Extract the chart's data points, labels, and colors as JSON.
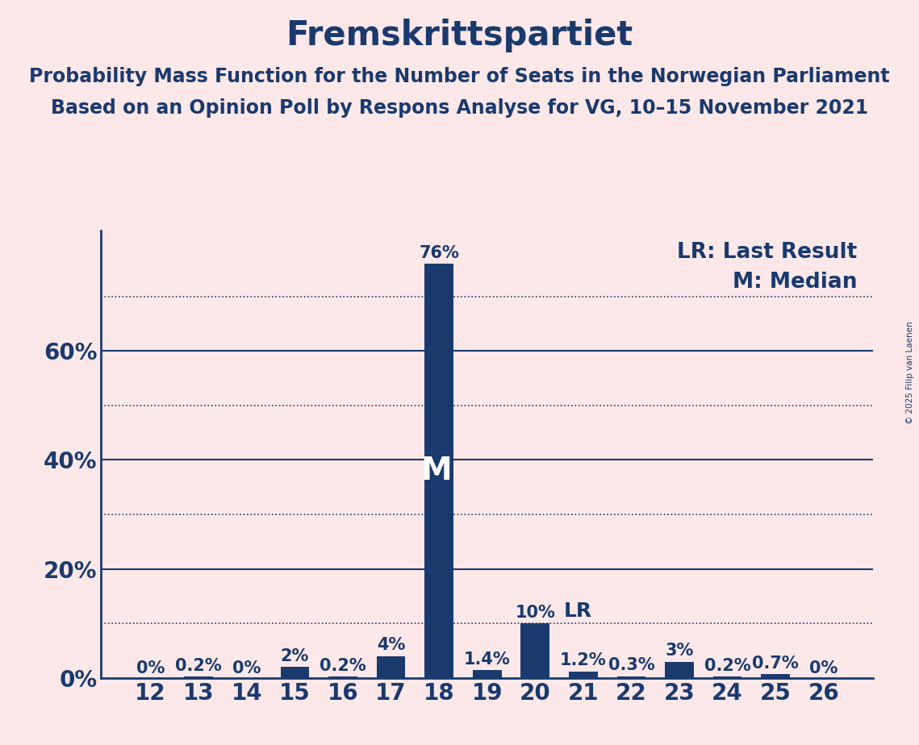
{
  "title": "Fremskrittspartiet",
  "subtitle1": "Probability Mass Function for the Number of Seats in the Norwegian Parliament",
  "subtitle2": "Based on an Opinion Poll by Respons Analyse for VG, 10–15 November 2021",
  "copyright": "© 2025 Filip van Laenen",
  "categories": [
    12,
    13,
    14,
    15,
    16,
    17,
    18,
    19,
    20,
    21,
    22,
    23,
    24,
    25,
    26
  ],
  "values": [
    0.0,
    0.2,
    0.0,
    2.0,
    0.2,
    4.0,
    76.0,
    1.4,
    10.0,
    1.2,
    0.3,
    3.0,
    0.2,
    0.7,
    0.0
  ],
  "labels": [
    "0%",
    "0.2%",
    "0%",
    "2%",
    "0.2%",
    "4%",
    "76%",
    "1.4%",
    "10%",
    "1.2%",
    "0.3%",
    "3%",
    "0.2%",
    "0.7%",
    "0%"
  ],
  "bar_color": "#1a3a6e",
  "background_color": "#fce8e8",
  "text_color": "#1a3a6e",
  "title_fontsize": 30,
  "subtitle_fontsize": 17,
  "axis_label_fontsize": 20,
  "bar_label_fontsize": 15,
  "legend_fontsize": 19,
  "solid_gridlines": [
    20,
    40,
    60
  ],
  "dotted_gridlines": [
    10,
    30,
    50,
    70
  ],
  "yticks": [
    0,
    20,
    40,
    60
  ],
  "ytick_labels": [
    "0%",
    "20%",
    "40%",
    "60%"
  ],
  "ylim": [
    0,
    82
  ],
  "median_seat": 18,
  "last_result_seat": 20,
  "legend_LR": "LR: Last Result",
  "legend_M": "M: Median"
}
